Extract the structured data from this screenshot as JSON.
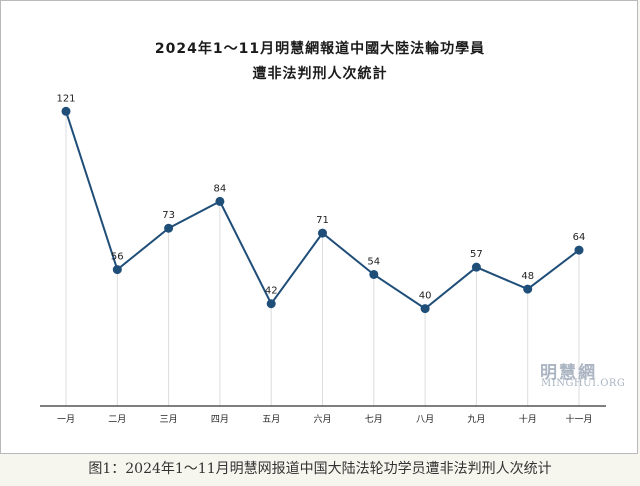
{
  "chart_data": {
    "type": "line",
    "title": "2024年1～11月明慧網報道中國大陸法輪功學員",
    "subtitle": "遭非法判刑人次統計",
    "categories": [
      "一月",
      "二月",
      "三月",
      "四月",
      "五月",
      "六月",
      "七月",
      "八月",
      "九月",
      "十月",
      "十一月"
    ],
    "values": [
      121,
      56,
      73,
      84,
      42,
      71,
      54,
      40,
      57,
      48,
      64
    ],
    "ylim": [
      0,
      140
    ],
    "grid": "vertical",
    "legend": "none",
    "line_color": "#1f4e79",
    "marker_color": "#1f4e79",
    "grid_color": "#dcdcdc"
  },
  "watermark": {
    "cn": "明慧網",
    "en": "MINGHUI.ORG"
  },
  "caption": "图1：2024年1～11月明慧网报道中国大陆法轮功学员遭非法判刑人次统计"
}
